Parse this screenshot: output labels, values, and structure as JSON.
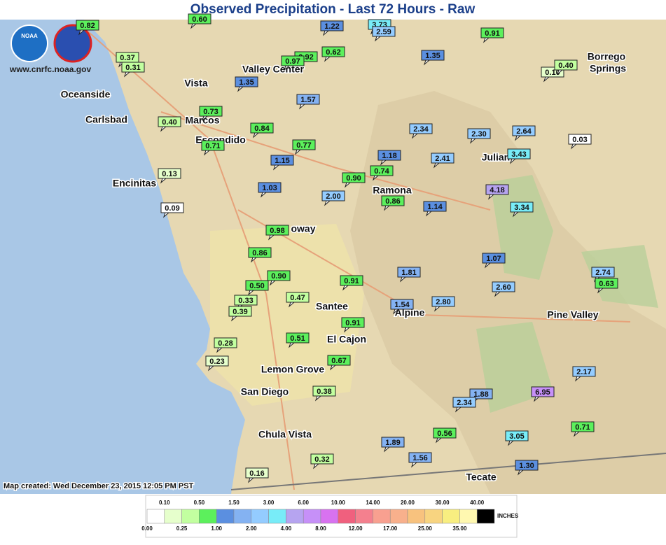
{
  "header": {
    "title": "Observed Precipitation - Last 72 Hours - Raw",
    "site": "www.cnrfc.noaa.gov",
    "logo_noaa": "NOAA"
  },
  "footer": {
    "created": "Map created: Wed December 23, 2015 12:05 PM PST"
  },
  "places": [
    "Oceanside",
    "Carlsbad",
    "Vista",
    "Marcos",
    "Escondido",
    "Encinitas",
    "Valley Center",
    "Ramona",
    "oway",
    "Julian",
    "Santee",
    "El Cajon",
    "Alpine",
    "Pine Valley",
    "Lemon Grove",
    "San Diego",
    "Chula Vista",
    "Tecate",
    "Borrego",
    "Springs"
  ],
  "stations": [
    "0.82",
    "0.60",
    "1.22",
    "3.73",
    "2.59",
    "0.91",
    "0.62",
    "0.92",
    "0.97",
    "0.37",
    "0.31",
    "1.35",
    "0.10",
    "0.40",
    "1.35",
    "1.57",
    "0.73",
    "0.84",
    "0.40",
    "0.71",
    "2.34",
    "2.30",
    "2.64",
    "0.03",
    "0.77",
    "1.18",
    "2.41",
    "3.43",
    "1.15",
    "0.74",
    "0.90",
    "0.13",
    "4.18",
    "1.03",
    "2.00",
    "0.86",
    "1.14",
    "3.34",
    "0.09",
    "0.98",
    "0.86",
    "1.81",
    "1.07",
    "2.74",
    "0.63",
    "0.90",
    "0.50",
    "0.91",
    "2.60",
    "0.33",
    "0.47",
    "1.54",
    "2.80",
    "0.39",
    "0.91",
    "0.51",
    "0.28",
    "0.67",
    "0.23",
    "2.17",
    "0.38",
    "1.88",
    "6.95",
    "2.34",
    "0.71",
    "0.56",
    "3.05",
    "1.89",
    "1.56",
    "0.32",
    "1.30",
    "0.16"
  ],
  "legend": {
    "unit": "INCHES",
    "bins": [
      {
        "label": "0.00",
        "color": "#ffffff"
      },
      {
        "label": "0.10",
        "color": "#e6ffcc"
      },
      {
        "label": "0.25",
        "color": "#c2ffa0"
      },
      {
        "label": "0.50",
        "color": "#5cf05c"
      },
      {
        "label": "1.00",
        "color": "#5b8fe0"
      },
      {
        "label": "1.50",
        "color": "#84b2f2"
      },
      {
        "label": "2.00",
        "color": "#94ccff"
      },
      {
        "label": "3.00",
        "color": "#78ecf8"
      },
      {
        "label": "4.00",
        "color": "#b6a4f0"
      },
      {
        "label": "6.00",
        "color": "#c690f8"
      },
      {
        "label": "8.00",
        "color": "#d872f0"
      },
      {
        "label": "10.00",
        "color": "#f0607e"
      },
      {
        "label": "12.00",
        "color": "#f4808e"
      },
      {
        "label": "14.00",
        "color": "#f8a090"
      },
      {
        "label": "17.00",
        "color": "#f8b08c"
      },
      {
        "label": "20.00",
        "color": "#f8c27e"
      },
      {
        "label": "25.00",
        "color": "#f8d480"
      },
      {
        "label": "30.00",
        "color": "#f8ee80"
      },
      {
        "label": "35.00",
        "color": "#fff8b0"
      },
      {
        "label": "40.00",
        "color": "#000000"
      }
    ]
  }
}
